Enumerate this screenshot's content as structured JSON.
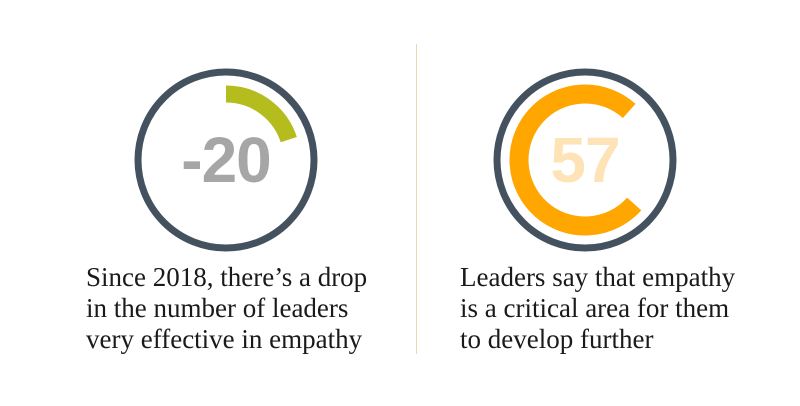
{
  "colors": {
    "ring": "#44525f",
    "left_arc": "#b5bd1e",
    "right_arc": "#ffa600",
    "left_value": "#a6a6a6",
    "right_value": "#fde3b6",
    "divider": "#e9d9b3"
  },
  "stats": [
    {
      "value": "-20",
      "arc_percent": 20,
      "caption": [
        "Since 2018, there’s a drop",
        "in the number of leaders",
        "very effective in empathy"
      ]
    },
    {
      "value": "57",
      "arc_percent": 57,
      "caption": [
        "Leaders say that empathy",
        "is a critical area for them",
        "to develop further"
      ]
    }
  ]
}
